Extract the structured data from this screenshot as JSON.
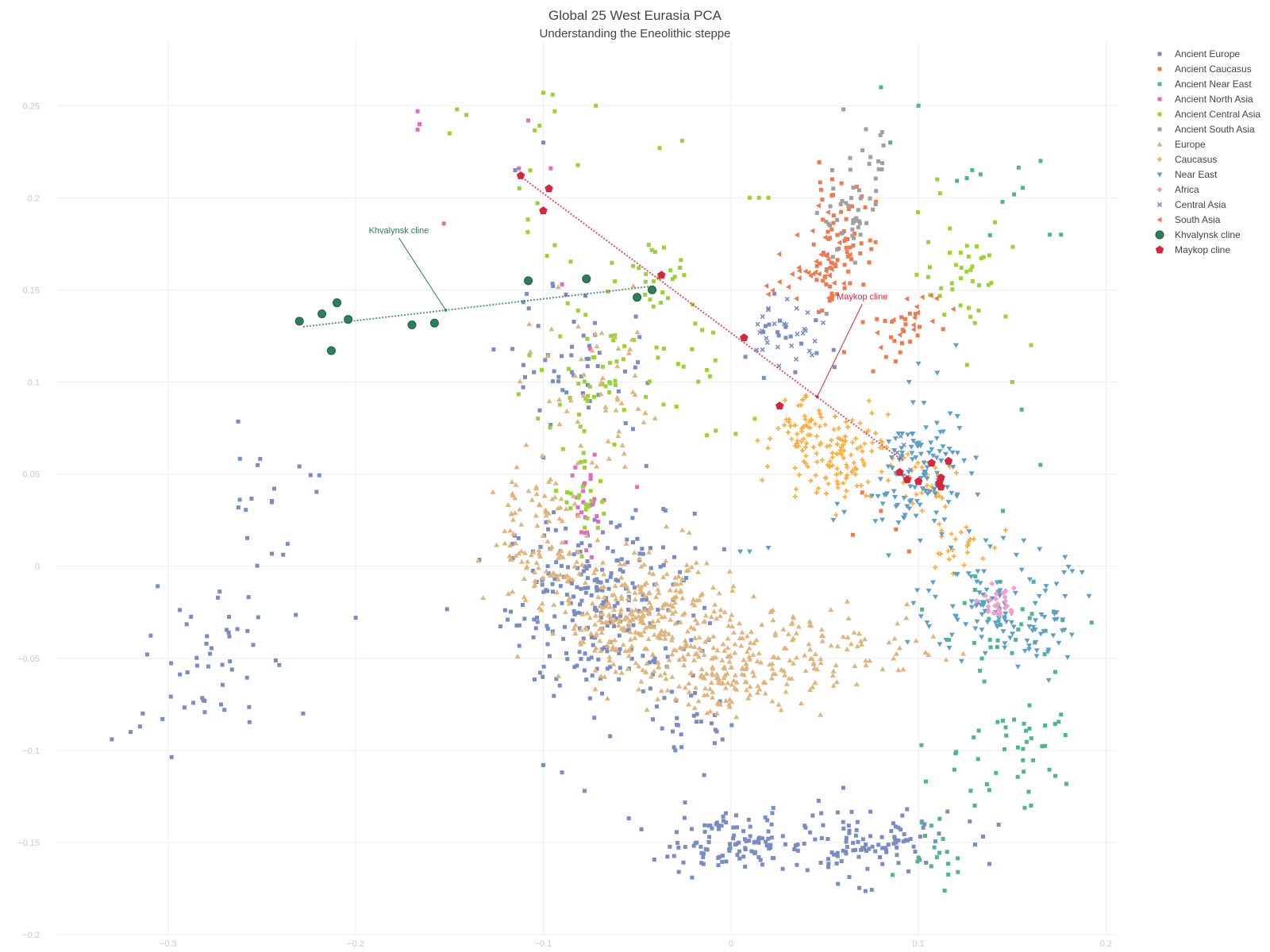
{
  "title": "Global 25 West Eurasia PCA",
  "subtitle": "Understanding the Eneolithic steppe",
  "chart_data": {
    "type": "scatter",
    "title": "Global 25 West Eurasia PCA",
    "subtitle": "Understanding the Eneolithic steppe",
    "xlabel": "",
    "ylabel": "",
    "xlim": [
      -0.36,
      0.207
    ],
    "ylim": [
      -0.2,
      0.285
    ],
    "x_ticks": [
      "−0.3",
      "−0.2",
      "−0.1",
      "0",
      "0.1",
      "0.2"
    ],
    "y_ticks": [
      "0.25",
      "0.2",
      "0.15",
      "0.1",
      "0.05",
      "0",
      "−0.05",
      "−0.1",
      "−0.15",
      "−0.2"
    ],
    "grid": true,
    "legend_position": "right",
    "series": [
      {
        "name": "Ancient Europe",
        "marker": "square",
        "color": "#7b8cc4",
        "clusters": [
          {
            "x": -0.07,
            "y": -0.02,
            "sx": 0.025,
            "sy": 0.025,
            "n": 260
          },
          {
            "x": 0.0,
            "y": -0.15,
            "sx": 0.02,
            "sy": 0.008,
            "n": 110
          },
          {
            "x": 0.07,
            "y": -0.15,
            "sx": 0.025,
            "sy": 0.01,
            "n": 110
          },
          {
            "x": -0.28,
            "y": -0.055,
            "sx": 0.015,
            "sy": 0.02,
            "n": 45
          },
          {
            "x": -0.24,
            "y": 0.04,
            "sx": 0.015,
            "sy": 0.025,
            "n": 22
          },
          {
            "x": -0.08,
            "y": 0.11,
            "sx": 0.02,
            "sy": 0.02,
            "n": 55
          },
          {
            "x": -0.03,
            "y": -0.09,
            "sx": 0.02,
            "sy": 0.01,
            "n": 30
          },
          {
            "x": 0.03,
            "y": 0.12,
            "sx": 0.012,
            "sy": 0.01,
            "n": 18
          }
        ],
        "points": [
          {
            "x": -0.33,
            "y": -0.094
          },
          {
            "x": -0.32,
            "y": -0.09
          },
          {
            "x": -0.315,
            "y": -0.087
          },
          {
            "x": -0.303,
            "y": -0.083
          },
          {
            "x": -0.1,
            "y": -0.108
          },
          {
            "x": -0.09,
            "y": -0.112
          },
          {
            "x": -0.078,
            "y": -0.122
          },
          {
            "x": -0.1,
            "y": 0.23
          },
          {
            "x": -0.115,
            "y": 0.215
          },
          {
            "x": -0.2,
            "y": -0.028
          },
          {
            "x": -0.228,
            "y": -0.08
          },
          {
            "x": -0.27,
            "y": -0.078
          }
        ]
      },
      {
        "name": "Ancient Caucasus",
        "marker": "square",
        "color": "#f07a50",
        "clusters": [
          {
            "x": 0.057,
            "y": 0.18,
            "sx": 0.01,
            "sy": 0.015,
            "n": 45
          },
          {
            "x": 0.054,
            "y": 0.155,
            "sx": 0.006,
            "sy": 0.015,
            "n": 25
          },
          {
            "x": 0.092,
            "y": 0.13,
            "sx": 0.01,
            "sy": 0.01,
            "n": 22
          }
        ],
        "points": [
          {
            "x": 0.07,
            "y": 0.04
          },
          {
            "x": 0.08,
            "y": 0.03
          },
          {
            "x": 0.065,
            "y": 0.017
          },
          {
            "x": 0.088,
            "y": 0.02
          },
          {
            "x": 0.095,
            "y": 0.008
          }
        ]
      },
      {
        "name": "Ancient Near East",
        "marker": "square",
        "color": "#4fb591",
        "clusters": [
          {
            "x": 0.16,
            "y": -0.098,
            "sx": 0.01,
            "sy": 0.01,
            "n": 30
          },
          {
            "x": 0.15,
            "y": -0.035,
            "sx": 0.02,
            "sy": 0.015,
            "n": 35
          },
          {
            "x": 0.11,
            "y": -0.15,
            "sx": 0.01,
            "sy": 0.01,
            "n": 18
          },
          {
            "x": 0.14,
            "y": 0.2,
            "sx": 0.02,
            "sy": 0.02,
            "n": 10
          },
          {
            "x": 0.13,
            "y": -0.11,
            "sx": 0.015,
            "sy": 0.015,
            "n": 12
          }
        ],
        "points": [
          {
            "x": 0.08,
            "y": 0.26
          },
          {
            "x": 0.1,
            "y": 0.25
          },
          {
            "x": 0.085,
            "y": 0.23
          },
          {
            "x": 0.17,
            "y": 0.18
          },
          {
            "x": 0.176,
            "y": 0.18
          },
          {
            "x": 0.165,
            "y": 0.055
          },
          {
            "x": 0.155,
            "y": 0.085
          },
          {
            "x": 0.15,
            "y": 0.1
          },
          {
            "x": 0.145,
            "y": 0.03
          },
          {
            "x": 0.13,
            "y": -0.13
          },
          {
            "x": 0.16,
            "y": -0.13
          }
        ]
      },
      {
        "name": "Ancient North Asia",
        "marker": "square",
        "color": "#e16bbd",
        "clusters": [
          {
            "x": -0.076,
            "y": 0.035,
            "sx": 0.005,
            "sy": 0.015,
            "n": 25
          }
        ],
        "points": [
          {
            "x": -0.167,
            "y": 0.247
          },
          {
            "x": -0.166,
            "y": 0.24
          },
          {
            "x": -0.167,
            "y": 0.237
          },
          {
            "x": -0.108,
            "y": 0.242
          },
          {
            "x": -0.113,
            "y": 0.216
          },
          {
            "x": -0.096,
            "y": 0.216
          },
          {
            "x": -0.153,
            "y": 0.186
          },
          {
            "x": -0.09,
            "y": 0.153
          },
          {
            "x": -0.075,
            "y": 0.118
          },
          {
            "x": -0.05,
            "y": 0.043
          },
          {
            "x": -0.088,
            "y": 0.013
          }
        ]
      },
      {
        "name": "Ancient Central Asia",
        "marker": "square",
        "color": "#9ad233",
        "clusters": [
          {
            "x": -0.04,
            "y": 0.16,
            "sx": 0.01,
            "sy": 0.01,
            "n": 25
          },
          {
            "x": 0.125,
            "y": 0.16,
            "sx": 0.012,
            "sy": 0.015,
            "n": 40
          },
          {
            "x": -0.07,
            "y": 0.11,
            "sx": 0.02,
            "sy": 0.02,
            "n": 45
          },
          {
            "x": -0.077,
            "y": 0.04,
            "sx": 0.006,
            "sy": 0.015,
            "n": 30
          },
          {
            "x": -0.1,
            "y": 0.2,
            "sx": 0.01,
            "sy": 0.03,
            "n": 12
          },
          {
            "x": -0.02,
            "y": 0.1,
            "sx": 0.015,
            "sy": 0.02,
            "n": 18
          }
        ],
        "points": [
          {
            "x": -0.146,
            "y": 0.248
          },
          {
            "x": -0.141,
            "y": 0.245
          },
          {
            "x": -0.15,
            "y": 0.235
          },
          {
            "x": -0.1,
            "y": 0.257
          },
          {
            "x": -0.095,
            "y": 0.256
          },
          {
            "x": -0.072,
            "y": 0.25
          },
          {
            "x": -0.038,
            "y": 0.227
          },
          {
            "x": -0.026,
            "y": 0.231
          },
          {
            "x": 0.01,
            "y": 0.2
          },
          {
            "x": 0.015,
            "y": 0.2
          },
          {
            "x": 0.02,
            "y": 0.2
          },
          {
            "x": 0.11,
            "y": 0.21
          },
          {
            "x": 0.16,
            "y": 0.12
          },
          {
            "x": 0.15,
            "y": 0.1
          }
        ]
      },
      {
        "name": "Ancient South Asia",
        "marker": "square",
        "color": "#a0a0a0",
        "clusters": [
          {
            "x": 0.065,
            "y": 0.19,
            "sx": 0.008,
            "sy": 0.012,
            "n": 40
          },
          {
            "x": 0.077,
            "y": 0.218,
            "sx": 0.005,
            "sy": 0.01,
            "n": 12
          }
        ],
        "points": [
          {
            "x": 0.06,
            "y": 0.248
          },
          {
            "x": 0.054,
            "y": 0.215
          },
          {
            "x": 0.051,
            "y": 0.137
          }
        ]
      },
      {
        "name": "Europe",
        "marker": "triangle-up",
        "color": "#e0b57d",
        "clusters": [
          {
            "x": -0.05,
            "y": -0.03,
            "sx": 0.02,
            "sy": 0.015,
            "n": 250
          },
          {
            "x": -0.1,
            "y": 0.0,
            "sx": 0.015,
            "sy": 0.01,
            "n": 60
          },
          {
            "x": -0.105,
            "y": 0.03,
            "sx": 0.012,
            "sy": 0.01,
            "n": 50
          },
          {
            "x": 0.0,
            "y": -0.06,
            "sx": 0.02,
            "sy": 0.01,
            "n": 130
          },
          {
            "x": 0.05,
            "y": -0.045,
            "sx": 0.03,
            "sy": 0.01,
            "n": 100
          },
          {
            "x": -0.07,
            "y": 0.09,
            "sx": 0.02,
            "sy": 0.025,
            "n": 60
          },
          {
            "x": -0.02,
            "y": -0.03,
            "sx": 0.03,
            "sy": 0.02,
            "n": 80
          }
        ],
        "points": []
      },
      {
        "name": "Caucasus",
        "marker": "cross",
        "color": "#ffac3c",
        "clusters": [
          {
            "x": 0.055,
            "y": 0.062,
            "sx": 0.015,
            "sy": 0.012,
            "n": 130
          },
          {
            "x": 0.035,
            "y": 0.08,
            "sx": 0.008,
            "sy": 0.008,
            "n": 30
          },
          {
            "x": 0.12,
            "y": 0.01,
            "sx": 0.008,
            "sy": 0.008,
            "n": 25
          },
          {
            "x": 0.1,
            "y": 0.045,
            "sx": 0.01,
            "sy": 0.01,
            "n": 30
          }
        ],
        "points": []
      },
      {
        "name": "Near East",
        "marker": "triangle-down",
        "color": "#5d9fc8",
        "clusters": [
          {
            "x": 0.105,
            "y": 0.055,
            "sx": 0.012,
            "sy": 0.015,
            "n": 90
          },
          {
            "x": 0.14,
            "y": -0.02,
            "sx": 0.02,
            "sy": 0.015,
            "n": 100
          },
          {
            "x": 0.16,
            "y": -0.035,
            "sx": 0.01,
            "sy": 0.008,
            "n": 30
          },
          {
            "x": 0.09,
            "y": 0.03,
            "sx": 0.015,
            "sy": 0.01,
            "n": 25
          }
        ],
        "points": [
          {
            "x": 0.1,
            "y": 0.11
          },
          {
            "x": 0.11,
            "y": 0.105
          },
          {
            "x": 0.095,
            "y": 0.1
          },
          {
            "x": 0.12,
            "y": 0.12
          },
          {
            "x": 0.005,
            "y": 0.008
          },
          {
            "x": 0.01,
            "y": 0.008
          },
          {
            "x": 0.02,
            "y": 0.01
          }
        ]
      },
      {
        "name": "Africa",
        "marker": "diamond",
        "color": "#f09fd0",
        "clusters": [
          {
            "x": 0.143,
            "y": -0.02,
            "sx": 0.005,
            "sy": 0.006,
            "n": 25
          }
        ],
        "points": []
      },
      {
        "name": "Central Asia",
        "marker": "x",
        "color": "#7b8cc4",
        "clusters": [
          {
            "x": 0.025,
            "y": 0.125,
            "sx": 0.012,
            "sy": 0.008,
            "n": 25
          },
          {
            "x": 0.09,
            "y": 0.06,
            "sx": 0.005,
            "sy": 0.005,
            "n": 6
          }
        ],
        "points": [
          {
            "x": 0.02,
            "y": 0.14
          },
          {
            "x": 0.03,
            "y": 0.145
          },
          {
            "x": 0.035,
            "y": 0.14
          }
        ]
      },
      {
        "name": "South Asia",
        "marker": "triangle-left",
        "color": "#f07a50",
        "clusters": [
          {
            "x": 0.05,
            "y": 0.165,
            "sx": 0.008,
            "sy": 0.012,
            "n": 30
          },
          {
            "x": 0.095,
            "y": 0.135,
            "sx": 0.01,
            "sy": 0.01,
            "n": 15
          },
          {
            "x": 0.028,
            "y": 0.15,
            "sx": 0.008,
            "sy": 0.006,
            "n": 10
          }
        ],
        "points": []
      },
      {
        "name": "Khvalynsk cline",
        "marker": "circle",
        "color": "#2e7d5b",
        "points": [
          {
            "x": -0.23,
            "y": 0.133
          },
          {
            "x": -0.218,
            "y": 0.137
          },
          {
            "x": -0.21,
            "y": 0.143
          },
          {
            "x": -0.204,
            "y": 0.134
          },
          {
            "x": -0.213,
            "y": 0.117
          },
          {
            "x": -0.17,
            "y": 0.131
          },
          {
            "x": -0.158,
            "y": 0.132
          },
          {
            "x": -0.108,
            "y": 0.155
          },
          {
            "x": -0.077,
            "y": 0.156
          },
          {
            "x": -0.05,
            "y": 0.146
          },
          {
            "x": -0.042,
            "y": 0.15
          }
        ]
      },
      {
        "name": "Maykop cline",
        "marker": "pentagon",
        "color": "#d7263d",
        "points": [
          {
            "x": -0.112,
            "y": 0.212
          },
          {
            "x": -0.097,
            "y": 0.205
          },
          {
            "x": -0.1,
            "y": 0.193
          },
          {
            "x": -0.037,
            "y": 0.158
          },
          {
            "x": 0.007,
            "y": 0.124
          },
          {
            "x": 0.026,
            "y": 0.087
          },
          {
            "x": 0.09,
            "y": 0.051
          },
          {
            "x": 0.094,
            "y": 0.047
          },
          {
            "x": 0.1,
            "y": 0.046
          },
          {
            "x": 0.107,
            "y": 0.056
          },
          {
            "x": 0.116,
            "y": 0.057
          },
          {
            "x": 0.112,
            "y": 0.048
          },
          {
            "x": 0.111,
            "y": 0.045
          },
          {
            "x": 0.112,
            "y": 0.043
          }
        ]
      }
    ],
    "lines": [
      {
        "name": "Khvalynsk cline",
        "color": "#2e7d5b",
        "from": {
          "x": -0.228,
          "y": 0.13
        },
        "to": {
          "x": -0.042,
          "y": 0.152
        }
      },
      {
        "name": "Maykop cline",
        "color": "#d7263d",
        "from": {
          "x": -0.11,
          "y": 0.21
        },
        "to": {
          "x": 0.092,
          "y": 0.057
        }
      }
    ],
    "annotations": [
      {
        "text": "Khvalynsk cline",
        "color": "#2e7d5b",
        "x": -0.177,
        "y": 0.18,
        "point": {
          "x": -0.152,
          "y": 0.139
        }
      },
      {
        "text": "Maykop cline",
        "color": "#d7263d",
        "x": 0.07,
        "y": 0.144,
        "point": {
          "x": 0.046,
          "y": 0.092
        }
      }
    ]
  }
}
